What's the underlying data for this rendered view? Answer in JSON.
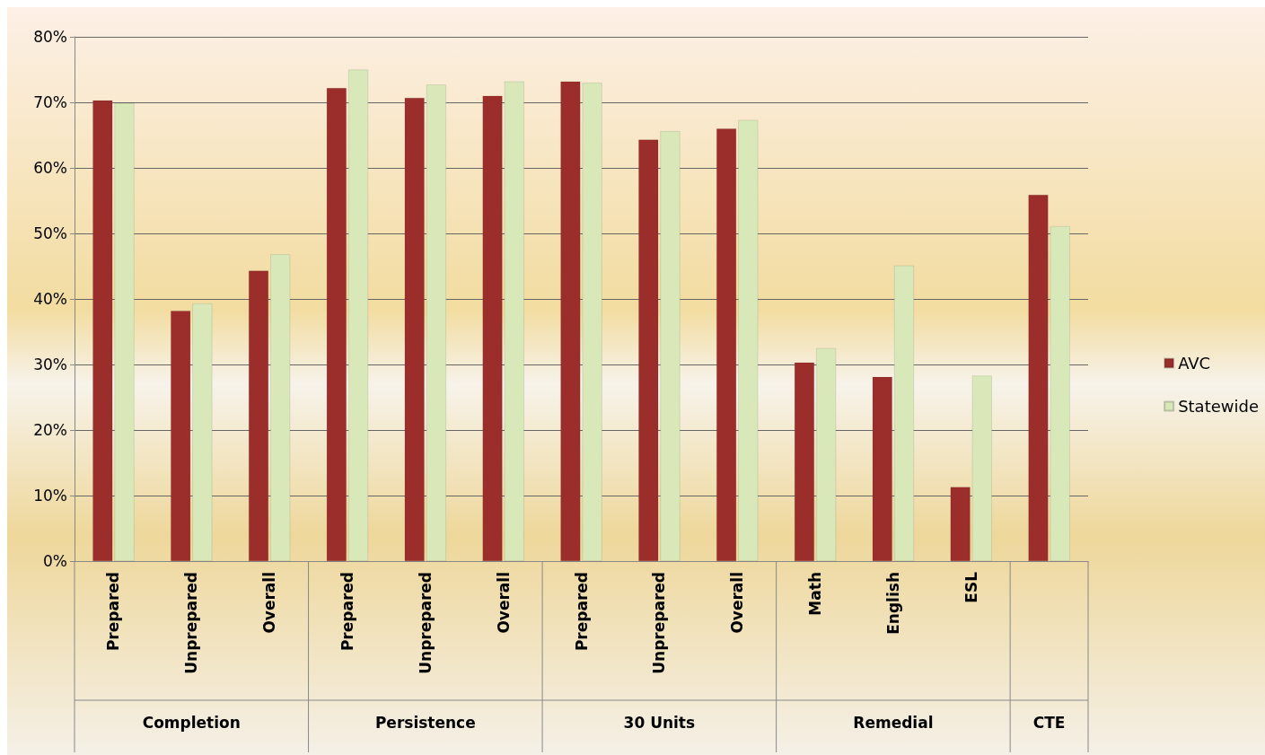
{
  "chart_data": {
    "type": "bar",
    "categories": [
      "Prepared",
      "Unprepared",
      "Overall",
      "Prepared",
      "Unprepared",
      "Overall",
      "Prepared",
      "Unprepared",
      "Overall",
      "Math",
      "English",
      "ESL",
      null
    ],
    "annotations": [
      "Completion",
      "Persistence",
      "30 Units",
      "Remedial",
      "CTE"
    ],
    "series": [
      {
        "name": "AVC",
        "color": "#9b2d2a",
        "values": [
          70.3,
          38.2,
          44.3,
          72.2,
          70.7,
          71.0,
          73.2,
          64.3,
          66.0,
          30.3,
          28.1,
          11.3,
          55.9
        ]
      },
      {
        "name": "Statewide",
        "color": "#d8e8b8",
        "values": [
          69.9,
          39.3,
          46.8,
          75.0,
          72.7,
          73.2,
          73.0,
          65.6,
          67.3,
          32.5,
          45.1,
          28.3,
          51.1
        ]
      }
    ],
    "ylim": [
      0,
      80
    ],
    "yticks": [
      {
        "value": 0,
        "label": "0%"
      },
      {
        "value": 10,
        "label": "10%"
      },
      {
        "value": 20,
        "label": "20%"
      },
      {
        "value": 30,
        "label": "30%"
      },
      {
        "value": 40,
        "label": "40%"
      },
      {
        "value": 50,
        "label": "50%"
      },
      {
        "value": 60,
        "label": "60%"
      },
      {
        "value": 70,
        "label": "70%"
      },
      {
        "value": 80,
        "label": "80%"
      }
    ],
    "grid": true,
    "legend": "right"
  }
}
